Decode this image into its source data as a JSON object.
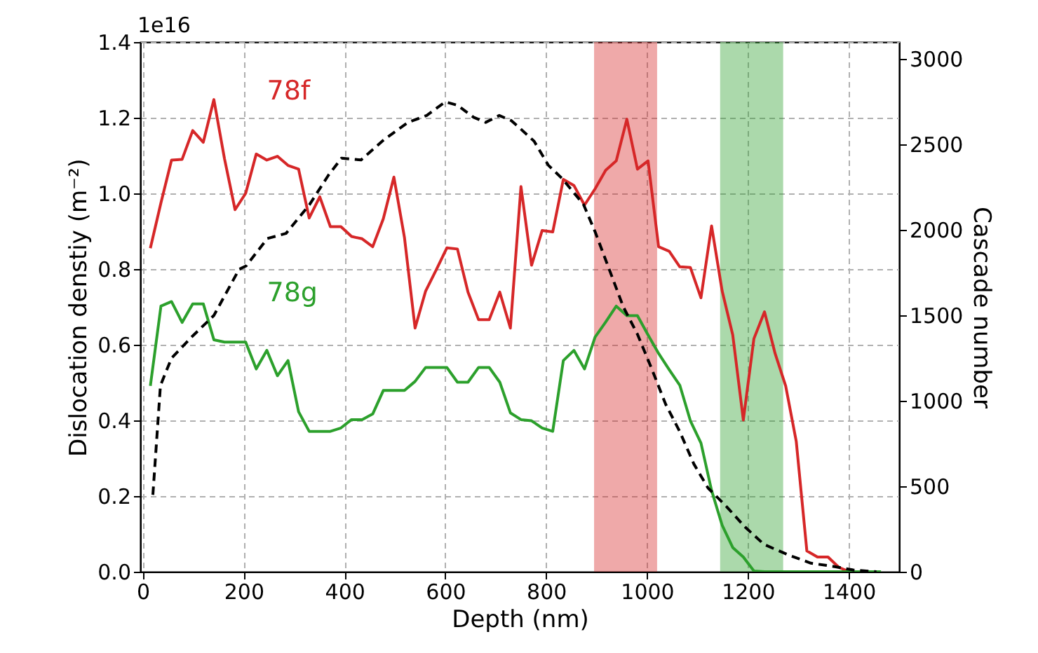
{
  "chart_data": {
    "type": "line",
    "xlabel": "Depth (nm)",
    "ylabel": "Dislocation denstiy (m⁻²)",
    "y2label": "Cascade number",
    "annotations": [
      "1e16"
    ],
    "xlim": [
      -5,
      1500
    ],
    "xticks": [
      0,
      200,
      400,
      600,
      800,
      1000,
      1200,
      1400
    ],
    "ylim": [
      0,
      1.4
    ],
    "yticks": [
      {
        "value": 0,
        "label": "0.0"
      },
      0.2,
      0.4,
      0.6,
      0.8,
      {
        "value": 1,
        "label": "1.0"
      },
      1.2,
      1.4
    ],
    "y2lim": [
      0,
      3100
    ],
    "y2ticks": [
      0,
      500,
      1000,
      1500,
      2000,
      2500,
      3000
    ],
    "grid": true,
    "x": [
      15,
      36,
      57,
      78,
      99,
      120,
      141,
      162,
      183,
      204,
      225,
      246,
      267,
      288,
      309,
      330,
      351,
      372,
      393,
      414,
      435,
      456,
      477,
      498,
      519,
      540,
      561,
      582,
      603,
      624,
      645,
      666,
      687,
      708,
      729,
      750,
      771,
      792,
      813,
      834,
      855,
      876,
      897,
      918,
      939,
      960,
      981,
      1002,
      1023,
      1044,
      1065,
      1086,
      1107,
      1128,
      1149,
      1170,
      1191,
      1212,
      1233,
      1254,
      1275,
      1296,
      1317,
      1338,
      1359,
      1380,
      1401,
      1422,
      1443,
      1464
    ],
    "series": [
      {
        "name": "78f",
        "color": "#d62728",
        "line_style": "solid",
        "values": [
          0.855,
          0.975,
          1.088,
          1.09,
          1.166,
          1.135,
          1.248,
          1.092,
          0.957,
          1.0,
          1.104,
          1.088,
          1.098,
          1.074,
          1.064,
          0.935,
          0.991,
          0.912,
          0.912,
          0.886,
          0.88,
          0.859,
          0.933,
          1.043,
          0.883,
          0.644,
          0.742,
          0.798,
          0.856,
          0.853,
          0.739,
          0.666,
          0.666,
          0.739,
          0.644,
          1.018,
          0.81,
          0.902,
          0.898,
          1.037,
          1.021,
          0.969,
          1.012,
          1.061,
          1.086,
          1.196,
          1.064,
          1.086,
          0.859,
          0.847,
          0.806,
          0.804,
          0.724,
          0.914,
          0.742,
          0.626,
          0.401,
          0.616,
          0.687,
          0.577,
          0.491,
          0.344,
          0.055,
          0.039,
          0.039,
          0.012,
          0.0,
          0.0,
          null,
          null
        ]
      },
      {
        "name": "78g",
        "color": "#2ca02c",
        "line_style": "solid",
        "values": [
          0.491,
          0.702,
          0.714,
          0.659,
          0.708,
          0.708,
          0.613,
          0.607,
          0.607,
          0.607,
          0.536,
          0.585,
          0.518,
          0.558,
          0.423,
          0.371,
          0.371,
          0.371,
          0.38,
          0.402,
          0.402,
          0.417,
          0.479,
          0.479,
          0.479,
          0.503,
          0.54,
          0.54,
          0.54,
          0.501,
          0.501,
          0.54,
          0.54,
          0.501,
          0.42,
          0.402,
          0.399,
          0.38,
          0.371,
          0.558,
          0.585,
          0.536,
          0.62,
          0.66,
          0.702,
          0.677,
          0.677,
          0.626,
          0.577,
          0.534,
          0.493,
          0.399,
          0.34,
          0.215,
          0.123,
          0.064,
          0.039,
          0.002,
          0.0,
          0.0,
          0.0,
          0.0,
          0.0,
          0.0,
          0.0,
          0.0,
          0.0,
          0.0,
          0.0,
          0.0
        ]
      },
      {
        "color": "#000000",
        "line_style": "dashed",
        "axis": "y2",
        "x": [
          20,
          35,
          57,
          99,
          141,
          191,
          205,
          247,
          284,
          331,
          368,
          394,
          433,
          479,
          526,
          563,
          600,
          624,
          656,
          680,
          707,
          731,
          750,
          776,
          804,
          832,
          874,
          897,
          925,
          953,
          981,
          1009,
          1037,
          1065,
          1093,
          1121,
          1158,
          1195,
          1232,
          1279,
          1325,
          1372,
          1409,
          1455
        ],
        "values": [
          450,
          1090,
          1250,
          1380,
          1500,
          1770,
          1790,
          1950,
          1980,
          2150,
          2320,
          2420,
          2410,
          2530,
          2630,
          2670,
          2750,
          2730,
          2660,
          2630,
          2670,
          2640,
          2590,
          2520,
          2380,
          2300,
          2150,
          1990,
          1770,
          1550,
          1390,
          1190,
          980,
          820,
          630,
          490,
          380,
          260,
          160,
          100,
          50,
          30,
          10,
          0
        ]
      }
    ],
    "bands": [
      {
        "axis": "x",
        "from": 895,
        "to": 1020,
        "color": "#d62728"
      },
      {
        "axis": "x",
        "from": 1145,
        "to": 1270,
        "color": "#2ca02c"
      }
    ]
  }
}
